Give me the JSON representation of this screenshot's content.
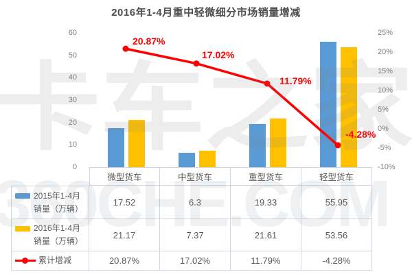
{
  "title": "2016年1-4月重中轻微细分市场销量增减",
  "watermark": {
    "primary": "卡车之家",
    "secondary": "360CHE.COM"
  },
  "chart_data": {
    "type": "combo-bar-line",
    "title": "2016年1-4月重中轻微细分市场销量增减",
    "categories": [
      "微型货车",
      "中型货车",
      "重型货车",
      "轻型货车"
    ],
    "bar_series": [
      {
        "name": "2015年1-4月销量（万辆）",
        "color": "#5B9BD5",
        "values": [
          17.52,
          6.3,
          19.33,
          55.95
        ]
      },
      {
        "name": "2016年1-4月销量（万辆）",
        "color": "#FFC000",
        "values": [
          21.17,
          7.37,
          21.61,
          53.56
        ]
      }
    ],
    "line_series": {
      "name": "累计增减",
      "color": "#FF0000",
      "values": [
        20.87,
        17.02,
        11.79,
        -4.28
      ],
      "point_labels": [
        "20.87%",
        "17.02%",
        "11.79%",
        "-4.28%"
      ]
    },
    "left_axis": {
      "min": 0,
      "max": 60,
      "step": 10,
      "tick_labels": [
        "0",
        "10",
        "20",
        "30",
        "40",
        "50",
        "60"
      ]
    },
    "right_axis": {
      "min": -10,
      "max": 25,
      "step": 5,
      "tick_labels": [
        "-10%",
        "-5%",
        "0%",
        "5%",
        "10%",
        "15%",
        "20%",
        "25%"
      ]
    },
    "grid": false,
    "legend_position": "table-left"
  },
  "table": {
    "column_headers": [
      "微型货车",
      "中型货车",
      "重型货车",
      "轻型货车"
    ],
    "rows": [
      {
        "label_lines": [
          "2015年1-4月",
          "销量（万辆）"
        ],
        "swatch": "bar-2015",
        "values": [
          "17.52",
          "6.3",
          "19.33",
          "55.95"
        ]
      },
      {
        "label_lines": [
          "2016年1-4月",
          "销量（万辆）"
        ],
        "swatch": "bar-2016",
        "values": [
          "21.17",
          "7.37",
          "21.61",
          "53.56"
        ]
      },
      {
        "label_lines": [
          "累计增减"
        ],
        "swatch": "line-marker",
        "values": [
          "20.87%",
          "17.02%",
          "11.79%",
          "-4.28%"
        ]
      }
    ]
  },
  "colors": {
    "bar_2015": "#5B9BD5",
    "bar_2016": "#FFC000",
    "trend_line": "#FF0000",
    "axis_text": "#7F7F7F",
    "table_text": "#595959",
    "table_border": "#CCD6E2",
    "title_text": "#4D4D4D",
    "watermark": "#EBEBEB"
  }
}
